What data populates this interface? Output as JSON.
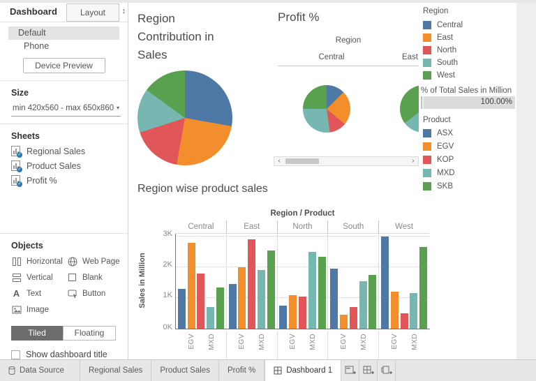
{
  "colors": {
    "blue": "#4e79a7",
    "orange": "#f28e2b",
    "red": "#e15759",
    "teal": "#76b7b2",
    "green": "#59a14f"
  },
  "sidebar": {
    "tab_dashboard": "Dashboard",
    "tab_layout": "Layout",
    "devices": {
      "default": "Default",
      "phone": "Phone"
    },
    "device_preview": "Device Preview",
    "size_header": "Size",
    "size_value": "min 420x560 - max 650x860",
    "sheets_header": "Sheets",
    "sheets": [
      {
        "label": "Regional Sales"
      },
      {
        "label": "Product Sales"
      },
      {
        "label": "Profit %"
      }
    ],
    "objects_header": "Objects",
    "objects": {
      "horizontal": "Horizontal",
      "vertical": "Vertical",
      "text": "Text",
      "image": "Image",
      "web_page": "Web Page",
      "blank": "Blank",
      "button": "Button"
    },
    "tiled": "Tiled",
    "floating": "Floating",
    "show_dashboard_title": "Show dashboard title"
  },
  "canvas": {
    "sales_pie_title": "Region Contribution in Sales",
    "profit_title": "Profit %",
    "profit_col_header": "Region",
    "profit_col_central": "Central",
    "profit_col_east": "East",
    "bar_title": "Region wise product sales"
  },
  "legend_region": {
    "title": "Region",
    "items": [
      {
        "label": "Central",
        "color": "#4e79a7"
      },
      {
        "label": "East",
        "color": "#f28e2b"
      },
      {
        "label": "North",
        "color": "#e15759"
      },
      {
        "label": "South",
        "color": "#76b7b2"
      },
      {
        "label": "West",
        "color": "#59a14f"
      }
    ]
  },
  "sales_filter": {
    "title": "% of Total Sales in Million",
    "value": "100.00%"
  },
  "legend_product": {
    "title": "Product",
    "items": [
      {
        "label": "ASX",
        "color": "#4e79a7"
      },
      {
        "label": "EGV",
        "color": "#f28e2b"
      },
      {
        "label": "KOP",
        "color": "#e15759"
      },
      {
        "label": "MXD",
        "color": "#76b7b2"
      },
      {
        "label": "SKB",
        "color": "#59a14f"
      }
    ]
  },
  "chart_data": [
    {
      "type": "pie",
      "title": "Region Contribution in Sales",
      "labels": [
        "Central",
        "East",
        "North",
        "South",
        "West"
      ],
      "values": [
        27.8,
        25,
        17.2,
        15,
        15
      ],
      "unit": "percent (estimated from slice angles)",
      "colors": [
        "#4e79a7",
        "#f28e2b",
        "#e15759",
        "#76b7b2",
        "#59a14f"
      ]
    },
    {
      "type": "pie",
      "title": "Profit % - Central",
      "labels": [
        "ASX",
        "EGV",
        "KOP",
        "MXD",
        "SKB"
      ],
      "values": [
        12.5,
        23.6,
        11.7,
        27.2,
        25
      ],
      "unit": "percent (estimated from slice angles)",
      "colors": [
        "#4e79a7",
        "#f28e2b",
        "#e15759",
        "#76b7b2",
        "#59a14f"
      ]
    },
    {
      "type": "pie",
      "title": "Profit % - East (partially visible, clipped at pane edge)",
      "segments": [
        {
          "label": "MXD",
          "color": "#76b7b2",
          "from_deg": 180,
          "to_deg": 233
        },
        {
          "label": "SKB",
          "color": "#59a14f",
          "from_deg": 233,
          "to_deg": 360
        }
      ]
    },
    {
      "type": "bar",
      "title": "Region wise product sales",
      "header": "Region / Product",
      "ylabel": "Sales in Million",
      "yticks": [
        "3K",
        "2K",
        "1K",
        "0K"
      ],
      "ylim": [
        0,
        3.1
      ],
      "x_axis_visible_labels": [
        "EGV",
        "MXD"
      ],
      "products": [
        "ASX",
        "EGV",
        "KOP",
        "MXD",
        "SKB"
      ],
      "colors": [
        "#4e79a7",
        "#f28e2b",
        "#e15759",
        "#76b7b2",
        "#59a14f"
      ],
      "groups": [
        {
          "region": "Central",
          "values": [
            1.3,
            2.8,
            1.8,
            0.7,
            1.35
          ]
        },
        {
          "region": "East",
          "values": [
            1.45,
            2.0,
            2.9,
            1.9,
            2.55
          ]
        },
        {
          "region": "North",
          "values": [
            0.75,
            1.1,
            1.05,
            2.5,
            2.35
          ]
        },
        {
          "region": "South",
          "values": [
            1.95,
            0.45,
            0.7,
            1.55,
            1.75
          ]
        },
        {
          "region": "West",
          "values": [
            3.0,
            1.2,
            0.5,
            1.15,
            2.65
          ]
        }
      ]
    }
  ],
  "statusbar": {
    "tabs": [
      {
        "label": "Data Source"
      },
      {
        "label": "Regional Sales"
      },
      {
        "label": "Product Sales"
      },
      {
        "label": "Profit %"
      },
      {
        "label": "Dashboard 1"
      }
    ]
  }
}
